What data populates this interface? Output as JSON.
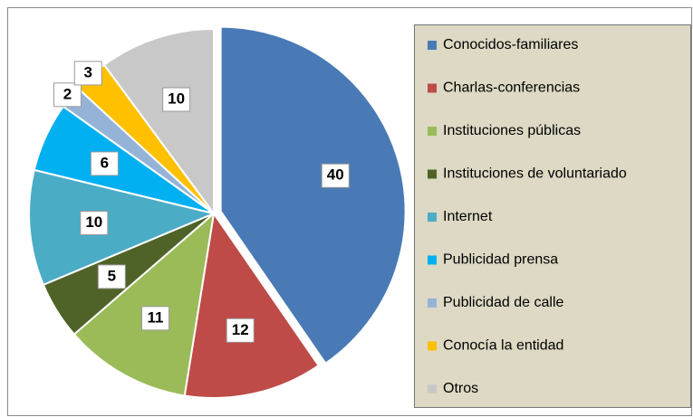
{
  "chart_data": {
    "type": "pie",
    "categories": [
      "Conocidos-familiares",
      "Charlas-conferencias",
      "Instituciones públicas",
      "Instituciones de voluntariado",
      "Internet",
      "Publicidad prensa",
      "Publicidad de calle",
      "Conocía la entidad",
      "Otros"
    ],
    "values": [
      40,
      12,
      11,
      5,
      10,
      6,
      2,
      3,
      10
    ],
    "colors": [
      "#4a7ab5",
      "#be4b48",
      "#9bbb59",
      "#4f6228",
      "#4bacc6",
      "#00b0f0",
      "#95b3d7",
      "#ffc000",
      "#c8c8c8"
    ],
    "legend": "right"
  }
}
